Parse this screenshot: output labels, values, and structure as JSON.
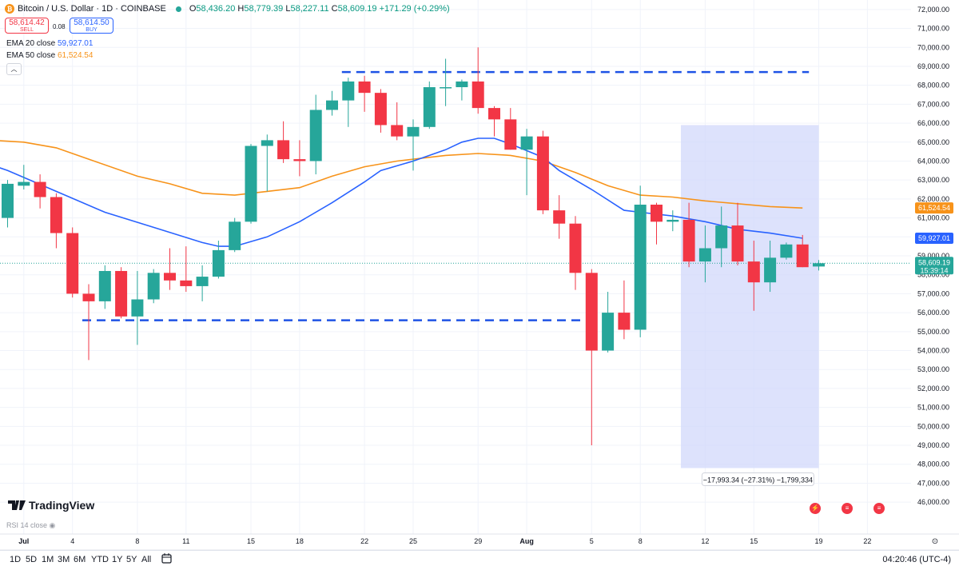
{
  "header": {
    "symbol_title": "Bitcoin / U.S. Dollar · 1D · COINBASE",
    "coin_symbol": "₿",
    "open": "58,436.20",
    "high": "58,779.39",
    "low": "58,227.11",
    "close": "58,609.19",
    "change": "+171.29 (+0.29%)"
  },
  "trade": {
    "sell_price": "58,614.42",
    "sell_label": "SELL",
    "spread": "0.08",
    "buy_price": "58,614.50",
    "buy_label": "BUY"
  },
  "indicators": {
    "ema20_label": "EMA 20 close",
    "ema20_value": "59,927.01",
    "ema50_label": "EMA 50 close",
    "ema50_value": "61,524.54",
    "rsi_label": "RSI 14 close"
  },
  "brand": "TradingView",
  "timeframes": [
    "1D",
    "5D",
    "1M",
    "3M",
    "6M",
    "YTD",
    "1Y",
    "5Y",
    "All"
  ],
  "clock": "04:20:46 (UTC-4)",
  "colors": {
    "up": "#26a69a",
    "down": "#f23645",
    "ema20": "#2962ff",
    "ema50": "#f7931a",
    "range": "#cfd6fb",
    "level": "#1e53e5"
  },
  "chart_data": {
    "type": "candlestick",
    "title": "Bitcoin / U.S. Dollar · 1D · COINBASE",
    "x_ticks": [
      "Jul",
      "4",
      "8",
      "11",
      "15",
      "18",
      "22",
      "25",
      "29",
      "Aug",
      "5",
      "8",
      "12",
      "15",
      "19",
      "22"
    ],
    "y_ticks": [
      46000,
      47000,
      48000,
      49000,
      50000,
      51000,
      52000,
      53000,
      54000,
      55000,
      56000,
      57000,
      58000,
      59000,
      60000,
      61000,
      62000,
      63000,
      64000,
      65000,
      66000,
      67000,
      68000,
      69000,
      70000,
      71000,
      72000
    ],
    "ylim": [
      45500,
      72500
    ],
    "candles": [
      {
        "date": "Jun 30",
        "o": 61000,
        "h": 63000,
        "l": 60500,
        "c": 62800
      },
      {
        "date": "Jul 1",
        "o": 62700,
        "h": 63800,
        "l": 62500,
        "c": 62900
      },
      {
        "date": "Jul 2",
        "o": 62900,
        "h": 63300,
        "l": 61500,
        "c": 62100
      },
      {
        "date": "Jul 3",
        "o": 62100,
        "h": 62300,
        "l": 59400,
        "c": 60200
      },
      {
        "date": "Jul 4",
        "o": 60200,
        "h": 60500,
        "l": 56800,
        "c": 57000
      },
      {
        "date": "Jul 5",
        "o": 57000,
        "h": 57500,
        "l": 53500,
        "c": 56600
      },
      {
        "date": "Jul 6",
        "o": 56600,
        "h": 58500,
        "l": 56200,
        "c": 58200
      },
      {
        "date": "Jul 7",
        "o": 58200,
        "h": 58400,
        "l": 55700,
        "c": 55800
      },
      {
        "date": "Jul 8",
        "o": 55800,
        "h": 58200,
        "l": 54300,
        "c": 56700
      },
      {
        "date": "Jul 9",
        "o": 56700,
        "h": 58300,
        "l": 56500,
        "c": 58100
      },
      {
        "date": "Jul 10",
        "o": 58100,
        "h": 59400,
        "l": 57200,
        "c": 57700
      },
      {
        "date": "Jul 11",
        "o": 57700,
        "h": 59500,
        "l": 57100,
        "c": 57400
      },
      {
        "date": "Jul 12",
        "o": 57400,
        "h": 58500,
        "l": 56600,
        "c": 57900
      },
      {
        "date": "Jul 13",
        "o": 57900,
        "h": 59800,
        "l": 57800,
        "c": 59300
      },
      {
        "date": "Jul 14",
        "o": 59300,
        "h": 61000,
        "l": 59200,
        "c": 60800
      },
      {
        "date": "Jul 15",
        "o": 60800,
        "h": 64900,
        "l": 60700,
        "c": 64800
      },
      {
        "date": "Jul 16",
        "o": 64800,
        "h": 65400,
        "l": 62400,
        "c": 65100
      },
      {
        "date": "Jul 17",
        "o": 65100,
        "h": 66100,
        "l": 63900,
        "c": 64100
      },
      {
        "date": "Jul 18",
        "o": 64100,
        "h": 65100,
        "l": 63200,
        "c": 64000
      },
      {
        "date": "Jul 19",
        "o": 64000,
        "h": 67500,
        "l": 63300,
        "c": 66700
      },
      {
        "date": "Jul 20",
        "o": 66700,
        "h": 67700,
        "l": 66400,
        "c": 67200
      },
      {
        "date": "Jul 21",
        "o": 67200,
        "h": 68400,
        "l": 65800,
        "c": 68200
      },
      {
        "date": "Jul 22",
        "o": 68200,
        "h": 68500,
        "l": 66600,
        "c": 67600
      },
      {
        "date": "Jul 23",
        "o": 67600,
        "h": 67800,
        "l": 65500,
        "c": 65900
      },
      {
        "date": "Jul 24",
        "o": 65900,
        "h": 67100,
        "l": 65100,
        "c": 65300
      },
      {
        "date": "Jul 25",
        "o": 65300,
        "h": 66200,
        "l": 63500,
        "c": 65800
      },
      {
        "date": "Jul 26",
        "o": 65800,
        "h": 68200,
        "l": 65700,
        "c": 67900
      },
      {
        "date": "Jul 27",
        "o": 67900,
        "h": 69400,
        "l": 66900,
        "c": 67900
      },
      {
        "date": "Jul 28",
        "o": 67900,
        "h": 68300,
        "l": 67200,
        "c": 68200
      },
      {
        "date": "Jul 29",
        "o": 68200,
        "h": 70000,
        "l": 66500,
        "c": 66800
      },
      {
        "date": "Jul 30",
        "o": 66800,
        "h": 66900,
        "l": 65300,
        "c": 66200
      },
      {
        "date": "Jul 31",
        "o": 66200,
        "h": 66800,
        "l": 64600,
        "c": 64600
      },
      {
        "date": "Aug 1",
        "o": 64600,
        "h": 65700,
        "l": 62200,
        "c": 65300
      },
      {
        "date": "Aug 2",
        "o": 65300,
        "h": 65600,
        "l": 61200,
        "c": 61400
      },
      {
        "date": "Aug 3",
        "o": 61400,
        "h": 62200,
        "l": 59900,
        "c": 60700
      },
      {
        "date": "Aug 4",
        "o": 60700,
        "h": 61100,
        "l": 57200,
        "c": 58100
      },
      {
        "date": "Aug 5",
        "o": 58100,
        "h": 58300,
        "l": 49000,
        "c": 54000
      },
      {
        "date": "Aug 6",
        "o": 54000,
        "h": 57100,
        "l": 53900,
        "c": 56000
      },
      {
        "date": "Aug 7",
        "o": 56000,
        "h": 57700,
        "l": 54600,
        "c": 55100
      },
      {
        "date": "Aug 8",
        "o": 55100,
        "h": 62700,
        "l": 54700,
        "c": 61700
      },
      {
        "date": "Aug 9",
        "o": 61700,
        "h": 61800,
        "l": 59600,
        "c": 60800
      },
      {
        "date": "Aug 10",
        "o": 60800,
        "h": 61400,
        "l": 60300,
        "c": 60900
      },
      {
        "date": "Aug 11",
        "o": 60900,
        "h": 61800,
        "l": 58400,
        "c": 58700
      },
      {
        "date": "Aug 12",
        "o": 58700,
        "h": 60600,
        "l": 57600,
        "c": 59400
      },
      {
        "date": "Aug 13",
        "o": 59400,
        "h": 61600,
        "l": 58400,
        "c": 60600
      },
      {
        "date": "Aug 14",
        "o": 60600,
        "h": 61800,
        "l": 58500,
        "c": 58700
      },
      {
        "date": "Aug 15",
        "o": 58700,
        "h": 59800,
        "l": 56100,
        "c": 57600
      },
      {
        "date": "Aug 16",
        "o": 57600,
        "h": 59800,
        "l": 57100,
        "c": 58900
      },
      {
        "date": "Aug 17",
        "o": 58900,
        "h": 59700,
        "l": 58800,
        "c": 59600
      },
      {
        "date": "Aug 18",
        "o": 59600,
        "h": 60100,
        "l": 58400,
        "c": 58400
      },
      {
        "date": "Aug 19",
        "o": 58436.2,
        "h": 58779.39,
        "l": 58227.11,
        "c": 58609.19
      }
    ],
    "ema20": [
      [
        -1,
        63800
      ],
      [
        0,
        63500
      ],
      [
        3,
        62400
      ],
      [
        6,
        61300
      ],
      [
        9,
        60500
      ],
      [
        12,
        59700
      ],
      [
        13,
        59500
      ],
      [
        14,
        59500
      ],
      [
        16,
        60000
      ],
      [
        18,
        60800
      ],
      [
        20,
        61800
      ],
      [
        22,
        62900
      ],
      [
        23,
        63500
      ],
      [
        25,
        64000
      ],
      [
        27,
        64600
      ],
      [
        28,
        65000
      ],
      [
        29,
        65200
      ],
      [
        30,
        65200
      ],
      [
        31,
        64900
      ],
      [
        33,
        64200
      ],
      [
        34,
        63500
      ],
      [
        36,
        62500
      ],
      [
        38,
        61400
      ],
      [
        39,
        61300
      ],
      [
        41,
        61100
      ],
      [
        43,
        60800
      ],
      [
        45,
        60400
      ],
      [
        47,
        60200
      ],
      [
        49,
        59927.01
      ]
    ],
    "ema50": [
      [
        -1,
        65100
      ],
      [
        1,
        65000
      ],
      [
        3,
        64700
      ],
      [
        5,
        64100
      ],
      [
        8,
        63200
      ],
      [
        10,
        62800
      ],
      [
        12,
        62300
      ],
      [
        14,
        62200
      ],
      [
        16,
        62400
      ],
      [
        18,
        62600
      ],
      [
        20,
        63200
      ],
      [
        22,
        63700
      ],
      [
        24,
        64000
      ],
      [
        27,
        64300
      ],
      [
        29,
        64400
      ],
      [
        31,
        64300
      ],
      [
        33,
        64000
      ],
      [
        35,
        63400
      ],
      [
        37,
        62700
      ],
      [
        39,
        62200
      ],
      [
        41,
        62100
      ],
      [
        43,
        61900
      ],
      [
        47,
        61600
      ],
      [
        49,
        61524.54
      ]
    ],
    "levels": [
      {
        "value": 68700,
        "from": 21,
        "to": 49
      },
      {
        "value": 55600,
        "from": 5,
        "to": 35
      }
    ],
    "range": {
      "from": 42,
      "to": 50.5,
      "high": 65900,
      "low": 47800,
      "label": "−17,993.34 (−27.31%) −1,799,334"
    },
    "last_price_label": "58,609.19",
    "countdown": "15:39:14"
  }
}
